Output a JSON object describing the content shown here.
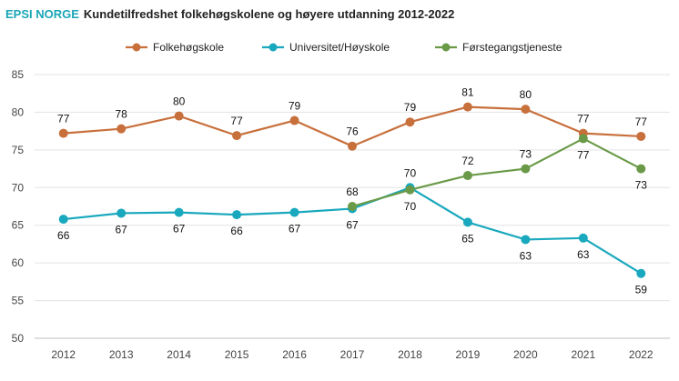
{
  "header": {
    "brand": "EPSI NORGE",
    "title": "Kundetilfredshet folkehøgskolene og høyere utdanning 2012-2022"
  },
  "chart_data": {
    "type": "line",
    "categories": [
      "2012",
      "2013",
      "2014",
      "2015",
      "2016",
      "2017",
      "2018",
      "2019",
      "2020",
      "2021",
      "2022"
    ],
    "ylim": [
      50,
      85
    ],
    "yticks": [
      "50",
      "55",
      "60",
      "65",
      "70",
      "75",
      "80",
      "85"
    ],
    "grid": true,
    "legend_position": "top",
    "series": [
      {
        "name": "Folkehøgskole",
        "color": "#c8703c",
        "values": [
          77.2,
          77.8,
          79.5,
          76.9,
          78.9,
          75.5,
          78.7,
          80.7,
          80.4,
          77.2,
          76.8
        ],
        "labels": [
          "77",
          "78",
          "80",
          "77",
          "79",
          "76",
          "79",
          "81",
          "80",
          "77",
          "77"
        ],
        "label_pos": [
          "above",
          "above",
          "above",
          "above",
          "above",
          "above",
          "above",
          "above",
          "above",
          "above",
          "above"
        ]
      },
      {
        "name": "Universitet/Høyskole",
        "color": "#19a8bd",
        "values": [
          65.8,
          66.6,
          66.7,
          66.4,
          66.7,
          67.2,
          70.0,
          65.4,
          63.1,
          63.3,
          58.6
        ],
        "labels": [
          "66",
          "67",
          "67",
          "66",
          "67",
          "67",
          "70",
          "65",
          "63",
          "63",
          "59"
        ],
        "label_pos": [
          "below",
          "below",
          "below",
          "below",
          "below",
          "below",
          "above",
          "below",
          "below",
          "below",
          "below"
        ]
      },
      {
        "name": "Førstegangstjeneste",
        "color": "#6a9a48",
        "start_index": 5,
        "values": [
          null,
          null,
          null,
          null,
          null,
          67.5,
          69.7,
          71.6,
          72.5,
          76.5,
          72.5
        ],
        "labels": [
          "",
          "",
          "",
          "",
          "",
          "68",
          "70",
          "72",
          "73",
          "77",
          "73"
        ],
        "label_pos": [
          "",
          "",
          "",
          "",
          "",
          "above",
          "below",
          "above",
          "above",
          "below",
          "below"
        ]
      }
    ]
  }
}
